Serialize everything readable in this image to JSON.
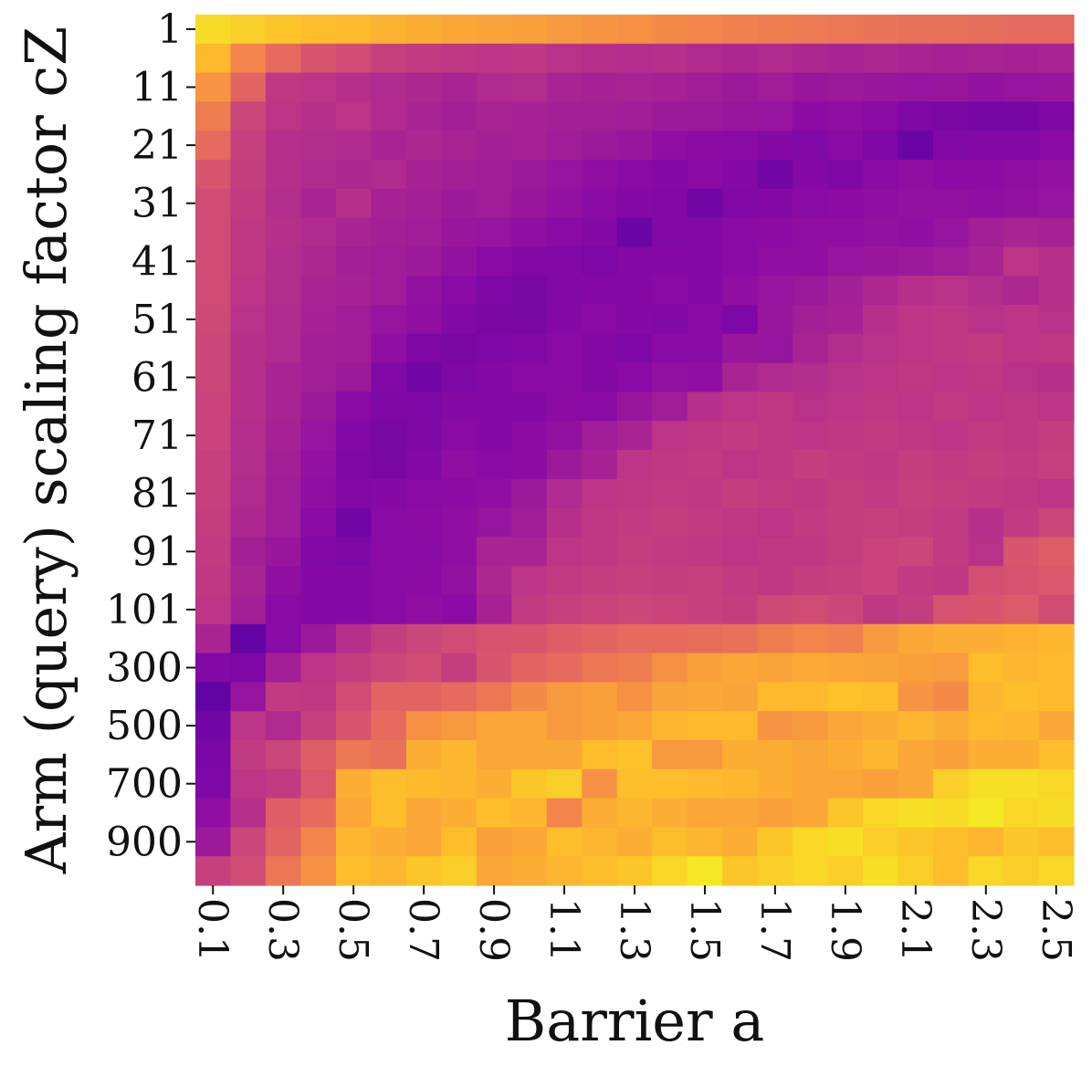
{
  "chart_data": {
    "type": "heatmap",
    "colormap": "plasma",
    "xlabel": "Barrier a",
    "ylabel": "Arm (query) scaling factor cZ",
    "x_categories": [
      "0.1",
      null,
      "0.3",
      null,
      "0.5",
      null,
      "0.7",
      null,
      "0.9",
      null,
      "1.1",
      null,
      "1.3",
      null,
      "1.5",
      null,
      "1.7",
      null,
      "1.9",
      null,
      "2.1",
      null,
      "2.3",
      null,
      "2.5"
    ],
    "y_categories": [
      "1",
      null,
      "11",
      null,
      "21",
      null,
      "31",
      null,
      "41",
      null,
      "51",
      null,
      "61",
      null,
      "71",
      null,
      "81",
      null,
      "91",
      null,
      "101",
      null,
      "300",
      null,
      "500",
      null,
      "700",
      null,
      "900",
      null
    ],
    "values": [
      [
        0.93,
        0.9,
        0.88,
        0.86,
        0.85,
        0.83,
        0.82,
        0.8,
        0.79,
        0.78,
        0.76,
        0.75,
        0.74,
        0.72,
        0.7,
        0.69,
        0.68,
        0.67,
        0.66,
        0.65,
        0.64,
        0.64,
        0.63,
        0.62,
        0.62
      ],
      [
        0.85,
        0.7,
        0.62,
        0.55,
        0.52,
        0.48,
        0.46,
        0.45,
        0.44,
        0.45,
        0.43,
        0.42,
        0.41,
        0.42,
        0.4,
        0.39,
        0.4,
        0.39,
        0.38,
        0.39,
        0.38,
        0.37,
        0.38,
        0.37,
        0.38
      ],
      [
        0.75,
        0.6,
        0.45,
        0.44,
        0.42,
        0.4,
        0.39,
        0.38,
        0.4,
        0.41,
        0.38,
        0.37,
        0.38,
        0.37,
        0.35,
        0.34,
        0.35,
        0.33,
        0.34,
        0.33,
        0.32,
        0.33,
        0.31,
        0.32,
        0.33
      ],
      [
        0.68,
        0.5,
        0.44,
        0.42,
        0.44,
        0.4,
        0.38,
        0.36,
        0.38,
        0.37,
        0.36,
        0.36,
        0.35,
        0.34,
        0.34,
        0.33,
        0.32,
        0.29,
        0.3,
        0.28,
        0.25,
        0.24,
        0.23,
        0.23,
        0.25
      ],
      [
        0.62,
        0.48,
        0.42,
        0.41,
        0.4,
        0.38,
        0.39,
        0.38,
        0.36,
        0.37,
        0.35,
        0.34,
        0.33,
        0.3,
        0.29,
        0.28,
        0.27,
        0.26,
        0.28,
        0.25,
        0.2,
        0.26,
        0.27,
        0.27,
        0.28
      ],
      [
        0.55,
        0.47,
        0.42,
        0.4,
        0.39,
        0.4,
        0.37,
        0.36,
        0.35,
        0.34,
        0.32,
        0.3,
        0.28,
        0.27,
        0.28,
        0.27,
        0.22,
        0.27,
        0.25,
        0.28,
        0.3,
        0.29,
        0.29,
        0.3,
        0.31
      ],
      [
        0.52,
        0.46,
        0.41,
        0.38,
        0.42,
        0.37,
        0.36,
        0.34,
        0.35,
        0.33,
        0.31,
        0.28,
        0.27,
        0.26,
        0.22,
        0.26,
        0.27,
        0.28,
        0.29,
        0.3,
        0.31,
        0.31,
        0.3,
        0.31,
        0.32
      ],
      [
        0.52,
        0.45,
        0.42,
        0.4,
        0.38,
        0.36,
        0.35,
        0.33,
        0.32,
        0.3,
        0.28,
        0.27,
        0.2,
        0.26,
        0.27,
        0.28,
        0.29,
        0.3,
        0.3,
        0.31,
        0.3,
        0.32,
        0.36,
        0.38,
        0.37
      ],
      [
        0.52,
        0.45,
        0.41,
        0.39,
        0.36,
        0.35,
        0.34,
        0.31,
        0.28,
        0.26,
        0.26,
        0.25,
        0.27,
        0.27,
        0.27,
        0.28,
        0.3,
        0.3,
        0.32,
        0.33,
        0.34,
        0.35,
        0.38,
        0.44,
        0.42
      ],
      [
        0.52,
        0.44,
        0.41,
        0.38,
        0.37,
        0.35,
        0.31,
        0.28,
        0.25,
        0.24,
        0.26,
        0.27,
        0.27,
        0.28,
        0.27,
        0.3,
        0.32,
        0.34,
        0.36,
        0.39,
        0.42,
        0.43,
        0.41,
        0.39,
        0.42
      ],
      [
        0.51,
        0.43,
        0.4,
        0.37,
        0.35,
        0.32,
        0.3,
        0.26,
        0.24,
        0.24,
        0.27,
        0.28,
        0.27,
        0.26,
        0.28,
        0.25,
        0.33,
        0.36,
        0.37,
        0.42,
        0.44,
        0.45,
        0.43,
        0.44,
        0.43
      ],
      [
        0.5,
        0.42,
        0.4,
        0.36,
        0.35,
        0.3,
        0.25,
        0.24,
        0.25,
        0.26,
        0.28,
        0.27,
        0.25,
        0.28,
        0.28,
        0.33,
        0.32,
        0.38,
        0.41,
        0.43,
        0.44,
        0.45,
        0.46,
        0.44,
        0.45
      ],
      [
        0.5,
        0.42,
        0.38,
        0.36,
        0.34,
        0.26,
        0.22,
        0.25,
        0.27,
        0.28,
        0.28,
        0.27,
        0.28,
        0.31,
        0.3,
        0.38,
        0.4,
        0.41,
        0.43,
        0.44,
        0.45,
        0.44,
        0.45,
        0.43,
        0.42
      ],
      [
        0.49,
        0.42,
        0.38,
        0.34,
        0.28,
        0.25,
        0.25,
        0.27,
        0.27,
        0.27,
        0.29,
        0.28,
        0.33,
        0.35,
        0.42,
        0.44,
        0.45,
        0.43,
        0.44,
        0.45,
        0.44,
        0.46,
        0.44,
        0.45,
        0.44
      ],
      [
        0.49,
        0.41,
        0.37,
        0.32,
        0.26,
        0.24,
        0.25,
        0.28,
        0.27,
        0.29,
        0.31,
        0.35,
        0.38,
        0.44,
        0.45,
        0.46,
        0.45,
        0.44,
        0.45,
        0.46,
        0.45,
        0.44,
        0.46,
        0.45,
        0.47
      ],
      [
        0.48,
        0.41,
        0.36,
        0.31,
        0.25,
        0.24,
        0.26,
        0.3,
        0.28,
        0.29,
        0.34,
        0.37,
        0.44,
        0.45,
        0.46,
        0.44,
        0.45,
        0.47,
        0.46,
        0.45,
        0.47,
        0.46,
        0.47,
        0.46,
        0.48
      ],
      [
        0.48,
        0.4,
        0.35,
        0.3,
        0.26,
        0.27,
        0.28,
        0.29,
        0.3,
        0.34,
        0.4,
        0.44,
        0.45,
        0.46,
        0.45,
        0.47,
        0.46,
        0.45,
        0.47,
        0.46,
        0.48,
        0.47,
        0.46,
        0.45,
        0.44
      ],
      [
        0.47,
        0.39,
        0.35,
        0.28,
        0.22,
        0.28,
        0.29,
        0.3,
        0.32,
        0.35,
        0.42,
        0.45,
        0.46,
        0.47,
        0.46,
        0.45,
        0.44,
        0.46,
        0.47,
        0.48,
        0.47,
        0.46,
        0.42,
        0.46,
        0.5
      ],
      [
        0.46,
        0.36,
        0.33,
        0.26,
        0.25,
        0.28,
        0.28,
        0.3,
        0.38,
        0.38,
        0.44,
        0.45,
        0.47,
        0.46,
        0.45,
        0.44,
        0.45,
        0.45,
        0.47,
        0.49,
        0.5,
        0.46,
        0.43,
        0.55,
        0.58
      ],
      [
        0.45,
        0.38,
        0.3,
        0.27,
        0.27,
        0.28,
        0.29,
        0.31,
        0.39,
        0.44,
        0.46,
        0.47,
        0.48,
        0.47,
        0.48,
        0.46,
        0.45,
        0.47,
        0.48,
        0.49,
        0.46,
        0.45,
        0.53,
        0.54,
        0.56
      ],
      [
        0.44,
        0.36,
        0.28,
        0.27,
        0.27,
        0.28,
        0.3,
        0.29,
        0.37,
        0.46,
        0.48,
        0.49,
        0.5,
        0.49,
        0.48,
        0.47,
        0.51,
        0.52,
        0.5,
        0.45,
        0.47,
        0.54,
        0.55,
        0.57,
        0.52
      ],
      [
        0.38,
        0.18,
        0.28,
        0.34,
        0.42,
        0.47,
        0.5,
        0.52,
        0.54,
        0.55,
        0.58,
        0.6,
        0.62,
        0.62,
        0.63,
        0.64,
        0.68,
        0.7,
        0.69,
        0.76,
        0.8,
        0.82,
        0.82,
        0.83,
        0.84
      ],
      [
        0.26,
        0.25,
        0.36,
        0.44,
        0.47,
        0.5,
        0.52,
        0.47,
        0.55,
        0.6,
        0.62,
        0.66,
        0.68,
        0.74,
        0.78,
        0.8,
        0.79,
        0.81,
        0.8,
        0.79,
        0.78,
        0.77,
        0.86,
        0.84,
        0.85
      ],
      [
        0.18,
        0.32,
        0.46,
        0.45,
        0.52,
        0.6,
        0.6,
        0.62,
        0.66,
        0.72,
        0.76,
        0.78,
        0.74,
        0.79,
        0.8,
        0.79,
        0.85,
        0.85,
        0.87,
        0.86,
        0.75,
        0.72,
        0.84,
        0.86,
        0.85
      ],
      [
        0.22,
        0.44,
        0.4,
        0.48,
        0.55,
        0.62,
        0.74,
        0.76,
        0.8,
        0.8,
        0.76,
        0.78,
        0.8,
        0.84,
        0.85,
        0.85,
        0.75,
        0.76,
        0.8,
        0.82,
        0.84,
        0.82,
        0.85,
        0.84,
        0.8
      ],
      [
        0.24,
        0.46,
        0.5,
        0.58,
        0.66,
        0.64,
        0.82,
        0.84,
        0.8,
        0.8,
        0.8,
        0.86,
        0.87,
        0.76,
        0.76,
        0.82,
        0.82,
        0.8,
        0.82,
        0.84,
        0.8,
        0.78,
        0.82,
        0.82,
        0.86
      ],
      [
        0.25,
        0.44,
        0.46,
        0.56,
        0.82,
        0.86,
        0.85,
        0.84,
        0.82,
        0.88,
        0.9,
        0.74,
        0.86,
        0.86,
        0.85,
        0.84,
        0.82,
        0.8,
        0.8,
        0.78,
        0.8,
        0.9,
        0.94,
        0.94,
        0.92
      ],
      [
        0.3,
        0.42,
        0.58,
        0.62,
        0.8,
        0.86,
        0.8,
        0.82,
        0.86,
        0.84,
        0.7,
        0.82,
        0.84,
        0.82,
        0.8,
        0.8,
        0.78,
        0.8,
        0.88,
        0.92,
        0.94,
        0.93,
        0.96,
        0.92,
        0.93
      ],
      [
        0.34,
        0.5,
        0.6,
        0.7,
        0.84,
        0.82,
        0.8,
        0.86,
        0.78,
        0.8,
        0.86,
        0.84,
        0.82,
        0.86,
        0.84,
        0.82,
        0.88,
        0.92,
        0.94,
        0.9,
        0.88,
        0.86,
        0.84,
        0.88,
        0.86
      ],
      [
        0.48,
        0.52,
        0.66,
        0.74,
        0.86,
        0.84,
        0.88,
        0.9,
        0.8,
        0.82,
        0.84,
        0.86,
        0.88,
        0.92,
        0.96,
        0.88,
        0.9,
        0.92,
        0.9,
        0.94,
        0.9,
        0.86,
        0.92,
        0.9,
        0.92
      ]
    ]
  }
}
